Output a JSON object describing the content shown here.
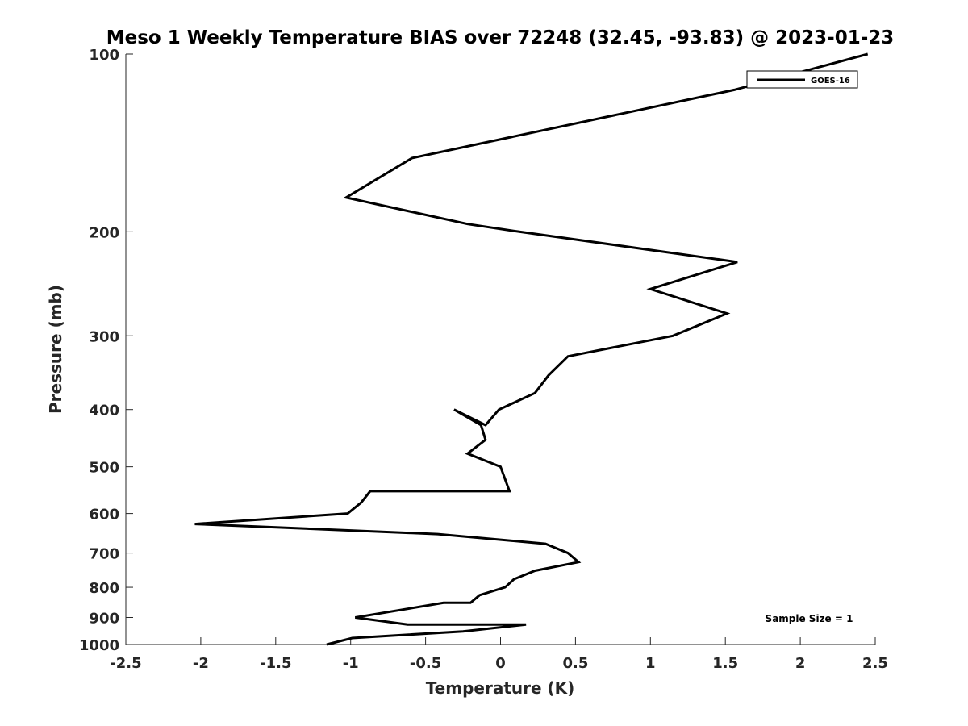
{
  "chart_data": {
    "type": "line",
    "title": "Meso 1 Weekly Temperature BIAS over 72248 (32.45, -93.83) @ 2023-01-23",
    "xlabel": "Temperature (K)",
    "ylabel": "Pressure (mb)",
    "xlim": [
      -2.5,
      2.5
    ],
    "ylim": [
      100,
      1000
    ],
    "y_scale": "log",
    "y_reversed": true,
    "x_ticks": [
      -2.5,
      -2,
      -1.5,
      -1,
      -0.5,
      0,
      0.5,
      1,
      1.5,
      2,
      2.5
    ],
    "x_tick_labels": [
      "-2.5",
      "-2",
      "-1.5",
      "-1",
      "-0.5",
      "0",
      "0.5",
      "1",
      "1.5",
      "2",
      "2.5"
    ],
    "y_ticks": [
      100,
      200,
      300,
      400,
      500,
      600,
      700,
      800,
      900,
      1000
    ],
    "y_tick_labels": [
      "100",
      "200",
      "300",
      "400",
      "500",
      "600",
      "700",
      "800",
      "900",
      "1000"
    ],
    "grid": false,
    "legend_position": "top-right",
    "series": [
      {
        "name": "GOES-16",
        "color": "#000000",
        "points": [
          [
            2.45,
            100
          ],
          [
            1.56,
            115
          ],
          [
            -0.59,
            150
          ],
          [
            -1.03,
            175
          ],
          [
            -0.22,
            194
          ],
          [
            0.13,
            200
          ],
          [
            1.58,
            225
          ],
          [
            1.0,
            250
          ],
          [
            1.51,
            275
          ],
          [
            1.15,
            300
          ],
          [
            0.45,
            325
          ],
          [
            0.32,
            350
          ],
          [
            0.23,
            375
          ],
          [
            -0.01,
            400
          ],
          [
            -0.1,
            425
          ],
          [
            -0.31,
            400
          ],
          [
            -0.13,
            425
          ],
          [
            -0.1,
            450
          ],
          [
            -0.22,
            475
          ],
          [
            0.0,
            500
          ],
          [
            0.06,
            550
          ],
          [
            -0.87,
            550
          ],
          [
            -0.93,
            575
          ],
          [
            -1.02,
            600
          ],
          [
            -2.04,
            625
          ],
          [
            -0.42,
            650
          ],
          [
            0.3,
            675
          ],
          [
            0.45,
            700
          ],
          [
            0.52,
            725
          ],
          [
            0.23,
            750
          ],
          [
            0.09,
            775
          ],
          [
            0.03,
            800
          ],
          [
            -0.14,
            825
          ],
          [
            -0.2,
            850
          ],
          [
            -0.38,
            850
          ],
          [
            -0.97,
            900
          ],
          [
            -0.62,
            925
          ],
          [
            0.17,
            925
          ],
          [
            -0.25,
            950
          ],
          [
            -0.99,
            975
          ],
          [
            -1.16,
            1000
          ]
        ]
      }
    ],
    "annotations": [
      "Sample Size = 1"
    ]
  }
}
